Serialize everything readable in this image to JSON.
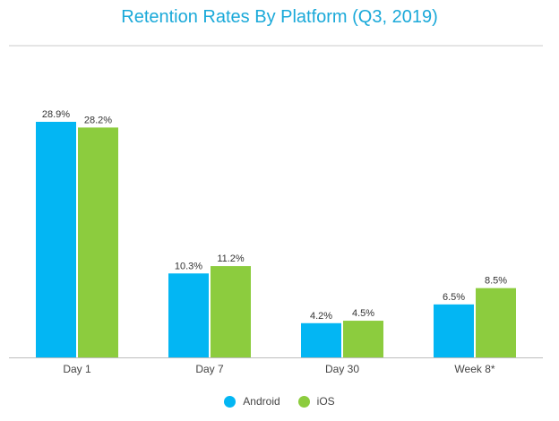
{
  "colors": {
    "android": "#03b6f3",
    "ios": "#8ccc3e"
  },
  "chart_data": {
    "type": "bar",
    "title": "Retention Rates By Platform (Q3, 2019)",
    "categories": [
      "Day 1",
      "Day 7",
      "Day 30",
      "Week 8*"
    ],
    "series": [
      {
        "name": "Android",
        "values": [
          28.9,
          10.3,
          4.2,
          6.5
        ],
        "labels": [
          "28.9%",
          "10.3%",
          "4.2%",
          "6.5%"
        ],
        "color": "#03b6f3"
      },
      {
        "name": "iOS",
        "values": [
          28.2,
          11.2,
          4.5,
          8.5
        ],
        "labels": [
          "28.2%",
          "11.2%",
          "4.5%",
          "8.5%"
        ],
        "color": "#8ccc3e"
      }
    ],
    "xlabel": "",
    "ylabel": "",
    "ylim": [
      0,
      32
    ],
    "grid": false,
    "legend": "bottom-center"
  }
}
